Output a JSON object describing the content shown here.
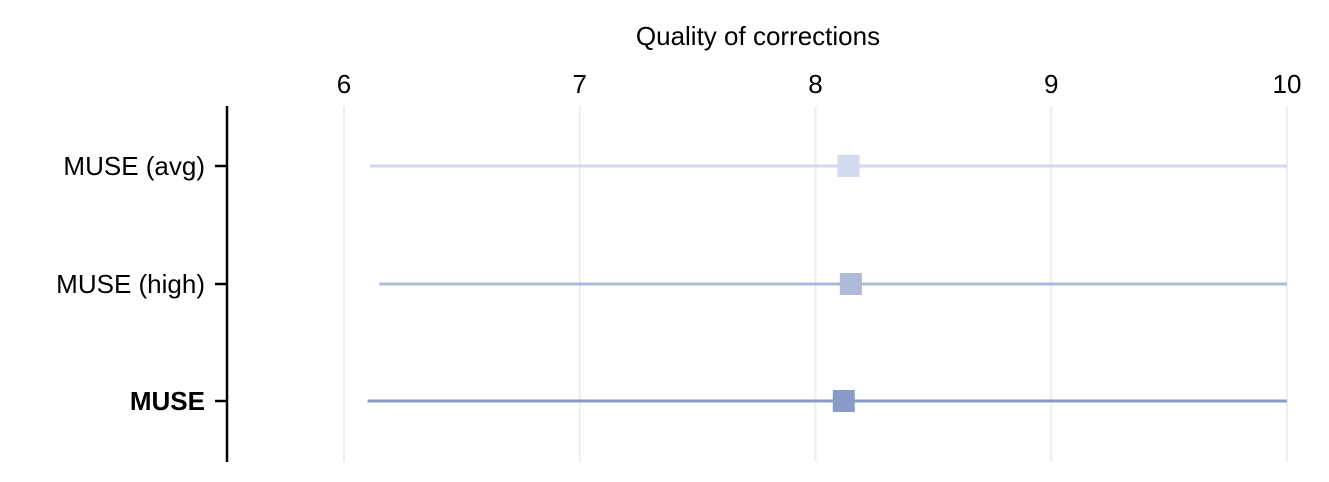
{
  "chart_data": {
    "type": "scatter",
    "title": "",
    "xlabel": "Quality of corrections",
    "ylabel": "",
    "xlim": [
      5.5,
      10
    ],
    "x_ticks": [
      6,
      7,
      8,
      9,
      10
    ],
    "x_tick_labels": [
      "6",
      "7",
      "8",
      "9",
      "10"
    ],
    "x_axis_position": "top",
    "grid": "vertical",
    "legend": "none",
    "categories": [
      "MUSE (avg)",
      "MUSE (high)",
      "MUSE"
    ],
    "highlighted_category": "MUSE",
    "points": [
      {
        "category": "MUSE (avg)",
        "value": 8.14,
        "low": 6.11,
        "high": 10.0,
        "color": "#d3d9ee"
      },
      {
        "category": "MUSE (high)",
        "value": 8.15,
        "low": 6.15,
        "high": 10.0,
        "color": "#aebad9"
      },
      {
        "category": "MUSE",
        "value": 8.12,
        "low": 6.1,
        "high": 10.0,
        "color": "#8b9bc7"
      }
    ],
    "colors": {
      "grid": "#f1efe3",
      "axis": "#000000",
      "highlight_label": "#8b9bc7"
    }
  }
}
